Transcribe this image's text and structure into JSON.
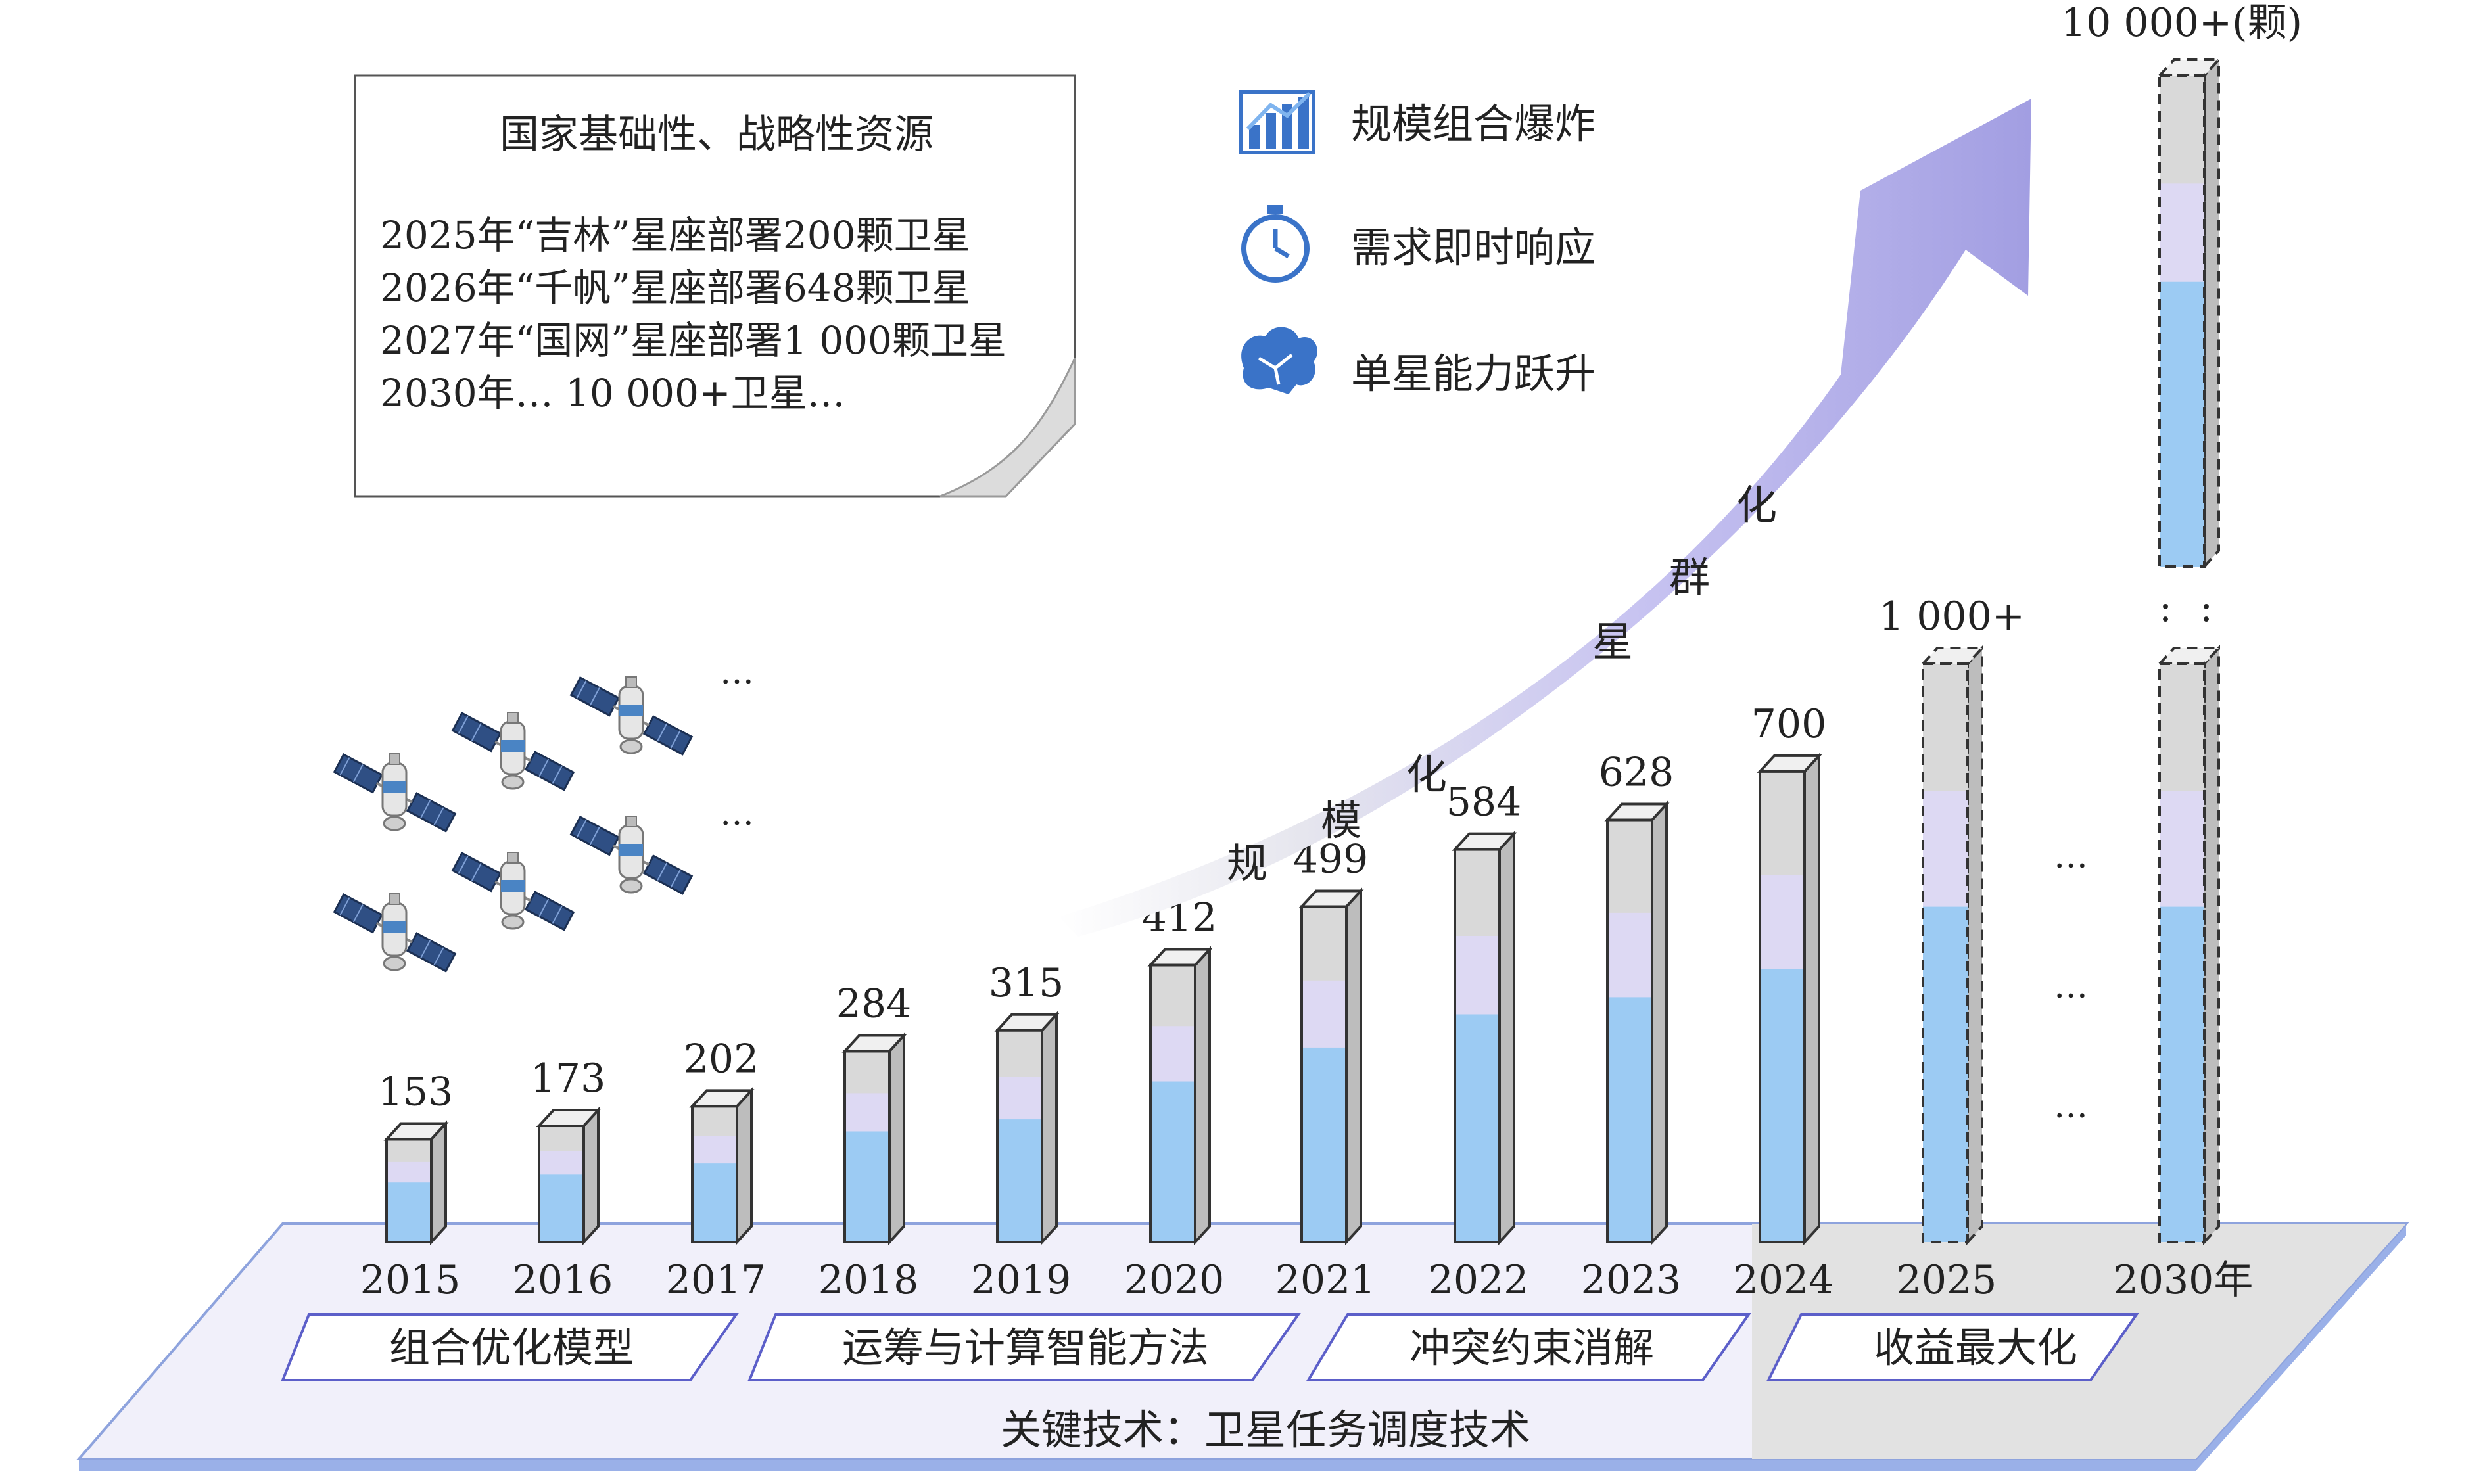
{
  "chart_data": {
    "type": "bar",
    "categories": [
      "2015",
      "2016",
      "2017",
      "2018",
      "2019",
      "2020",
      "2021",
      "2022",
      "2023",
      "2024",
      "2025",
      "2030年"
    ],
    "values": [
      153,
      173,
      202,
      284,
      315,
      412,
      499,
      584,
      628,
      700,
      null,
      null
    ],
    "value_labels": [
      "153",
      "173",
      "202",
      "284",
      "315",
      "412",
      "499",
      "584",
      "628",
      "700",
      "1 000+",
      "10 000+(颗)"
    ],
    "projected": [
      false,
      false,
      false,
      false,
      false,
      false,
      false,
      false,
      false,
      false,
      true,
      true
    ],
    "ellipsis_rows": [
      "…",
      "…",
      "…"
    ],
    "vertical_ellipsis": ":"
  },
  "note": {
    "title": "国家基础性、战略性资源",
    "lines": [
      "2025年“吉林”星座部署200颗卫星",
      "2026年“千帆”星座部署648颗卫星",
      "2027年“国网”星座部署1 000颗卫星",
      "2030年… 10 000+卫星…"
    ]
  },
  "legend": [
    {
      "icon": "bar-chart-icon",
      "label": "规模组合爆炸"
    },
    {
      "icon": "stopwatch-icon",
      "label": "需求即时响应"
    },
    {
      "icon": "brain-icon",
      "label": "单星能力跃升"
    }
  ],
  "trend_arrow": {
    "chars": [
      "规",
      "模",
      "化",
      "星",
      "群",
      "化"
    ],
    "color": "#a9a6e6"
  },
  "satellites": {
    "count": 6,
    "ellipsis": "…"
  },
  "platform": {
    "phases": [
      "组合优化模型",
      "运筹与计算智能方法",
      "冲突约束消解",
      "收益最大化"
    ],
    "caption": "关键技术：卫星任务调度技术"
  },
  "colors": {
    "bar_body": "#d9d9d9",
    "bar_lavender": "#ddd9f3",
    "bar_blue": "#9ccbf3",
    "platform_face": "#efeff8",
    "platform_edge": "#8fa7e6",
    "phase_border": "#5c5fc9",
    "icon_blue": "#3a73c8"
  }
}
